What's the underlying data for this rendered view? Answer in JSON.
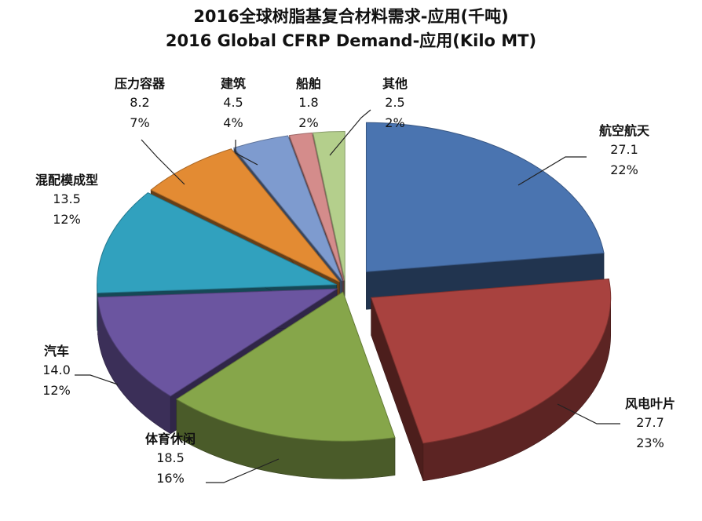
{
  "chart_data": {
    "type": "pie",
    "title": "2016全球树脂基复合材料需求-应用(千吨)",
    "subtitle": "2016 Global CFRP Demand-应用(Kilo MT)",
    "three_d": true,
    "exploded": true,
    "legend": "none",
    "slices": [
      {
        "label": "航空航天",
        "value": "27.1",
        "percent": "22%",
        "color": "#4a74b0"
      },
      {
        "label": "风电叶片",
        "value": "27.7",
        "percent": "23%",
        "color": "#a8423f"
      },
      {
        "label": "体育休闲",
        "value": "18.5",
        "percent": "16%",
        "color": "#86a64a"
      },
      {
        "label": "汽车",
        "value": "14.0",
        "percent": "12%",
        "color": "#6b55a0"
      },
      {
        "label": "混配模成型",
        "value": "13.5",
        "percent": "12%",
        "color": "#31a1be"
      },
      {
        "label": "压力容器",
        "value": "8.2",
        "percent": "7%",
        "color": "#e38b33"
      },
      {
        "label": "建筑",
        "value": "4.5",
        "percent": "4%",
        "color": "#7e9bcf"
      },
      {
        "label": "船舶",
        "value": "1.8",
        "percent": "2%",
        "color": "#d48c8b"
      },
      {
        "label": "其他",
        "value": "2.5",
        "percent": "2%",
        "color": "#b4cf8c"
      }
    ]
  }
}
